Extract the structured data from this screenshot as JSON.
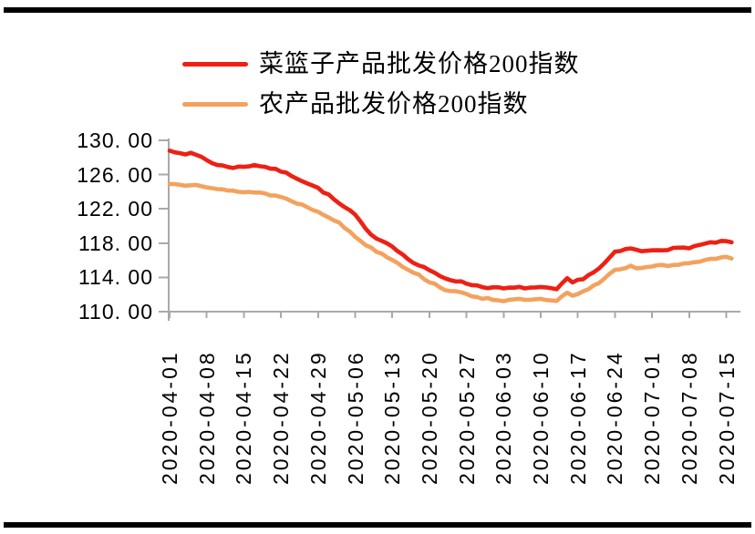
{
  "page": {
    "background": "#ffffff",
    "rule_color": "#000000"
  },
  "legend": {
    "items": [
      {
        "label": "菜篮子产品批发价格200指数",
        "color": "#ee2014"
      },
      {
        "label": "农产品批发价格200指数",
        "color": "#f3a25e"
      }
    ]
  },
  "chart_data": {
    "type": "line",
    "title": "",
    "xlabel": "",
    "ylabel": "",
    "categories": [
      "2020-04-01",
      "2020-04-08",
      "2020-04-15",
      "2020-04-22",
      "2020-04-29",
      "2020-05-06",
      "2020-05-13",
      "2020-05-20",
      "2020-05-27",
      "2020-06-03",
      "2020-06-10",
      "2020-06-17",
      "2020-06-24",
      "2020-07-01",
      "2020-07-08",
      "2020-07-15"
    ],
    "x_tick_labels": [
      "2020-04-01",
      "2020-04-08",
      "2020-04-15",
      "2020-04-22",
      "2020-04-29",
      "2020-05-06",
      "2020-05-13",
      "2020-05-20",
      "2020-05-27",
      "2020-06-03",
      "2020-06-10",
      "2020-06-17",
      "2020-06-24",
      "2020-07-01",
      "2020-07-08",
      "2020-07-15"
    ],
    "y_ticks": [
      130,
      126,
      122,
      118,
      114,
      110
    ],
    "y_tick_labels": [
      "130. 00",
      "126. 00",
      "122. 00",
      "118. 00",
      "114. 00",
      "110. 00"
    ],
    "ylim": [
      110,
      130
    ],
    "grid": false,
    "legend_position": "top-center",
    "axis_color": "#a9a9a9",
    "tick_interval_days": 7,
    "x_span_days": 106,
    "series": [
      {
        "name": "菜篮子产品批发价格200指数",
        "color": "#ee2014",
        "values": [
          128.8,
          127.7,
          126.9,
          126.4,
          124.4,
          121.3,
          117.7,
          114.8,
          113.3,
          112.7,
          112.8,
          113.9,
          116.9,
          117.2,
          117.5,
          118.2
        ],
        "detail_days": [
          0,
          2,
          3,
          4,
          6,
          7,
          9,
          12,
          14,
          16,
          18,
          21,
          23,
          25,
          28,
          30,
          32,
          35,
          37,
          39,
          42,
          44,
          46,
          49,
          52,
          56,
          59,
          63,
          66,
          70,
          73,
          75,
          76,
          78,
          81,
          84,
          87,
          89,
          91,
          94,
          98,
          101,
          103,
          105,
          106
        ],
        "detail_values": [
          128.8,
          128.6,
          128.25,
          128.5,
          128.1,
          127.7,
          127.1,
          126.85,
          126.9,
          127.15,
          126.9,
          126.4,
          125.9,
          125.3,
          124.4,
          123.6,
          122.6,
          121.3,
          119.6,
          118.6,
          117.7,
          116.6,
          115.7,
          114.8,
          113.9,
          113.3,
          112.9,
          112.7,
          112.8,
          112.8,
          112.6,
          113.8,
          113.4,
          113.9,
          115.0,
          116.9,
          117.4,
          117.0,
          117.2,
          117.3,
          117.5,
          117.9,
          118.1,
          118.2,
          118.1
        ]
      },
      {
        "name": "农产品批发价格200指数",
        "color": "#f3a25e",
        "values": [
          124.9,
          124.6,
          124.0,
          123.4,
          121.7,
          118.8,
          116.1,
          113.5,
          112.0,
          111.3,
          111.4,
          112.3,
          114.9,
          115.3,
          115.7,
          116.3
        ],
        "detail_days": [
          0,
          3,
          5,
          7,
          9,
          11,
          14,
          17,
          21,
          24,
          28,
          30,
          32,
          35,
          37,
          39,
          42,
          44,
          46,
          49,
          52,
          56,
          59,
          63,
          66,
          70,
          73,
          75,
          76,
          78,
          81,
          84,
          87,
          89,
          91,
          94,
          98,
          101,
          103,
          105,
          106
        ],
        "detail_values": [
          124.9,
          124.8,
          124.9,
          124.6,
          124.3,
          124.1,
          124.0,
          123.9,
          123.4,
          122.7,
          121.7,
          121.1,
          120.3,
          118.8,
          117.8,
          117.1,
          116.1,
          115.3,
          114.6,
          113.5,
          112.6,
          112.0,
          111.6,
          111.3,
          111.4,
          111.4,
          111.2,
          112.2,
          111.8,
          112.3,
          113.4,
          114.9,
          115.3,
          115.0,
          115.3,
          115.4,
          115.7,
          116.0,
          116.2,
          116.3,
          116.2
        ]
      }
    ]
  }
}
